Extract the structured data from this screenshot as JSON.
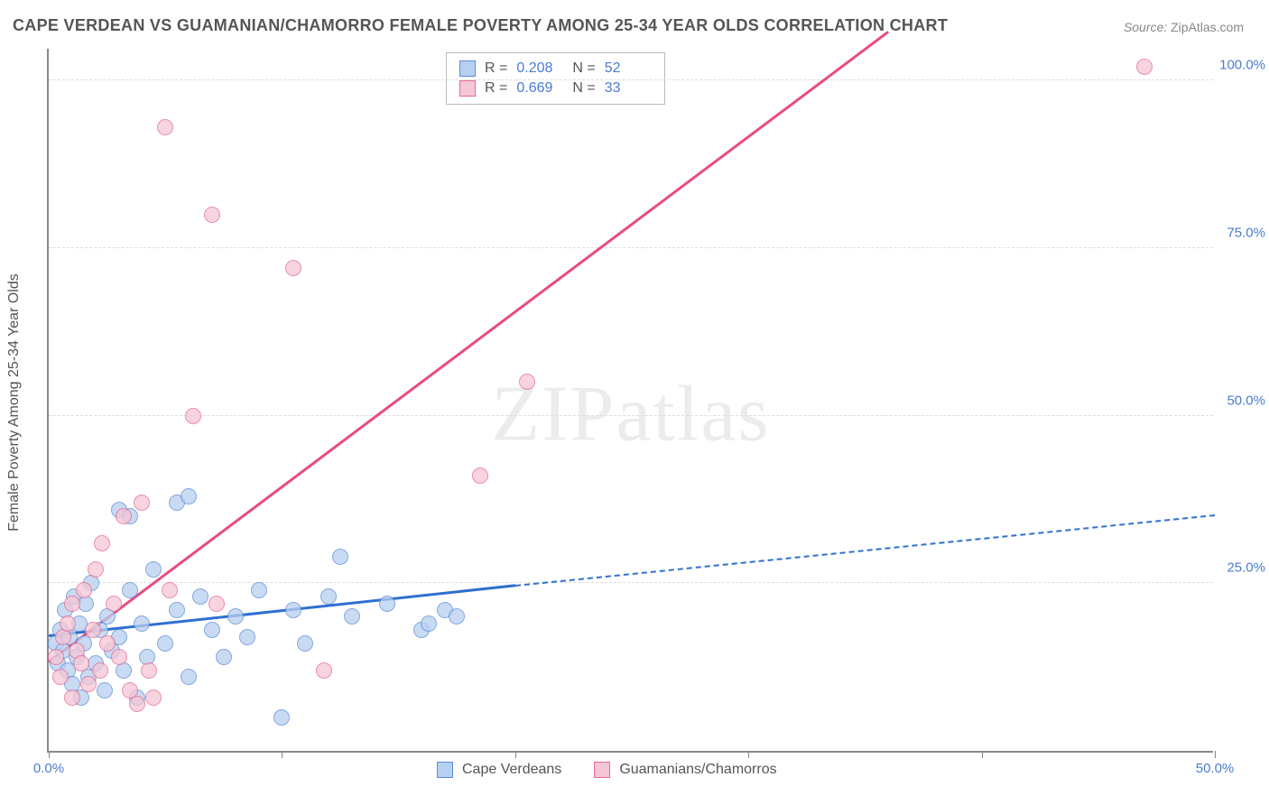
{
  "title": "CAPE VERDEAN VS GUAMANIAN/CHAMORRO FEMALE POVERTY AMONG 25-34 YEAR OLDS CORRELATION CHART",
  "source_label": "Source:",
  "source_value": "ZipAtlas.com",
  "y_axis_label": "Female Poverty Among 25-34 Year Olds",
  "watermark": "ZIPatlas",
  "chart": {
    "type": "scatter",
    "xlim": [
      0,
      50
    ],
    "ylim": [
      0,
      105
    ],
    "x_ticks": [
      0,
      10,
      20,
      30,
      40,
      50
    ],
    "x_tick_labels": {
      "0": "0.0%",
      "50": "50.0%"
    },
    "y_ticks": [
      25,
      50,
      75,
      100
    ],
    "y_tick_labels": {
      "25": "25.0%",
      "50": "50.0%",
      "75": "75.0%",
      "100": "100.0%"
    },
    "grid_color": "#dddddd",
    "axis_color": "#888888",
    "background_color": "#ffffff",
    "marker_radius": 9,
    "marker_opacity": 0.75,
    "series": [
      {
        "name": "Cape Verdeans",
        "color_fill": "#b8d0f0",
        "color_stroke": "#5a8cd8",
        "R": "0.208",
        "N": "52",
        "trend": {
          "x0": 0,
          "y0": 17,
          "x_solid_end": 20,
          "y_solid_end": 24.5,
          "x_dash_end": 50,
          "y_dash_end": 35,
          "color": "#2f6fd0"
        },
        "points": [
          [
            0.3,
            16
          ],
          [
            0.4,
            13
          ],
          [
            0.5,
            18
          ],
          [
            0.6,
            15
          ],
          [
            0.7,
            21
          ],
          [
            0.8,
            12
          ],
          [
            0.9,
            17
          ],
          [
            1.0,
            10
          ],
          [
            1.1,
            23
          ],
          [
            1.2,
            14
          ],
          [
            1.3,
            19
          ],
          [
            1.4,
            8
          ],
          [
            1.5,
            16
          ],
          [
            1.6,
            22
          ],
          [
            1.7,
            11
          ],
          [
            1.8,
            25
          ],
          [
            2.0,
            13
          ],
          [
            2.2,
            18
          ],
          [
            2.4,
            9
          ],
          [
            2.5,
            20
          ],
          [
            2.7,
            15
          ],
          [
            3.0,
            17
          ],
          [
            3.0,
            36
          ],
          [
            3.2,
            12
          ],
          [
            3.5,
            24
          ],
          [
            3.5,
            35
          ],
          [
            3.8,
            8
          ],
          [
            4.0,
            19
          ],
          [
            4.2,
            14
          ],
          [
            4.5,
            27
          ],
          [
            5.0,
            16
          ],
          [
            5.5,
            21
          ],
          [
            5.5,
            37
          ],
          [
            6.0,
            11
          ],
          [
            6.0,
            38
          ],
          [
            6.5,
            23
          ],
          [
            7.0,
            18
          ],
          [
            7.5,
            14
          ],
          [
            8.0,
            20
          ],
          [
            8.5,
            17
          ],
          [
            9.0,
            24
          ],
          [
            10.0,
            5
          ],
          [
            10.5,
            21
          ],
          [
            11.0,
            16
          ],
          [
            12.0,
            23
          ],
          [
            12.5,
            29
          ],
          [
            13.0,
            20
          ],
          [
            14.5,
            22
          ],
          [
            16.0,
            18
          ],
          [
            16.3,
            19
          ],
          [
            17.0,
            21
          ],
          [
            17.5,
            20
          ]
        ]
      },
      {
        "name": "Guamanians/Chamorros",
        "color_fill": "#f5c6d5",
        "color_stroke": "#e56a94",
        "R": "0.669",
        "N": "33",
        "trend": {
          "x0": 0,
          "y0": 13,
          "x_solid_end": 36,
          "y_solid_end": 107,
          "color": "#e84b84"
        },
        "points": [
          [
            0.3,
            14
          ],
          [
            0.5,
            11
          ],
          [
            0.6,
            17
          ],
          [
            0.8,
            19
          ],
          [
            1.0,
            8
          ],
          [
            1.0,
            22
          ],
          [
            1.2,
            15
          ],
          [
            1.4,
            13
          ],
          [
            1.5,
            24
          ],
          [
            1.7,
            10
          ],
          [
            1.9,
            18
          ],
          [
            2.0,
            27
          ],
          [
            2.2,
            12
          ],
          [
            2.3,
            31
          ],
          [
            2.5,
            16
          ],
          [
            2.8,
            22
          ],
          [
            3.0,
            14
          ],
          [
            3.2,
            35
          ],
          [
            3.5,
            9
          ],
          [
            3.8,
            7
          ],
          [
            4.0,
            37
          ],
          [
            4.3,
            12
          ],
          [
            4.5,
            8
          ],
          [
            5.0,
            93
          ],
          [
            5.2,
            24
          ],
          [
            6.2,
            50
          ],
          [
            7.0,
            80
          ],
          [
            7.2,
            22
          ],
          [
            10.5,
            72
          ],
          [
            11.8,
            12
          ],
          [
            18.5,
            41
          ],
          [
            20.5,
            55
          ],
          [
            47.0,
            102
          ]
        ]
      }
    ]
  },
  "bottom_legend": [
    "Cape Verdeans",
    "Guamanians/Chamorros"
  ]
}
